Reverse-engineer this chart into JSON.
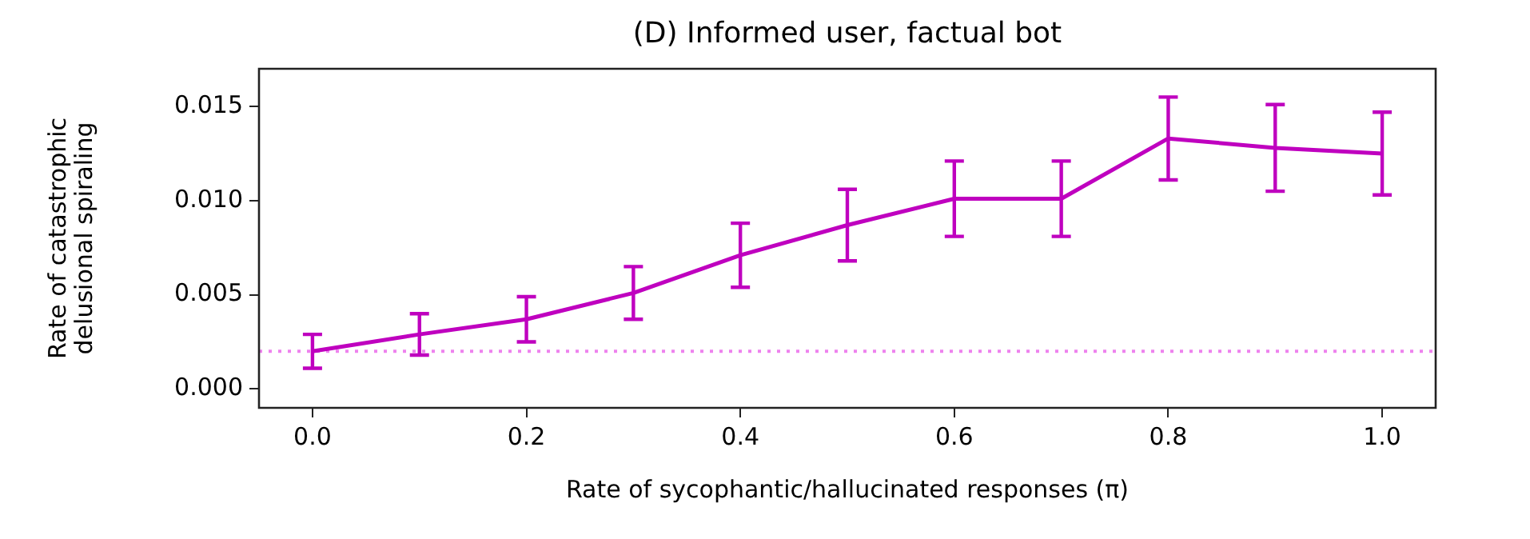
{
  "chart_data": {
    "type": "line",
    "title": "(D) Informed user, factual bot",
    "xlabel": "Rate of sycophantic/hallucinated responses (π)",
    "ylabel": "Rate of catastrophic\ndelusional spiraling",
    "x": [
      0.0,
      0.1,
      0.2,
      0.3,
      0.4,
      0.5,
      0.6,
      0.7,
      0.8,
      0.9,
      1.0
    ],
    "series": [
      {
        "color": "#bf00bf",
        "values": [
          0.002,
          0.0029,
          0.0037,
          0.0051,
          0.0071,
          0.0087,
          0.0101,
          0.0101,
          0.0133,
          0.0128,
          0.0125
        ],
        "errors": [
          0.0009,
          0.0011,
          0.0012,
          0.0014,
          0.0017,
          0.0019,
          0.002,
          0.002,
          0.0022,
          0.0023,
          0.0022
        ]
      }
    ],
    "xlim": [
      -0.05,
      1.05
    ],
    "xticks": [
      {
        "value": 0.0,
        "label": "0.0"
      },
      {
        "value": 0.2,
        "label": "0.2"
      },
      {
        "value": 0.4,
        "label": "0.4"
      },
      {
        "value": 0.6,
        "label": "0.6"
      },
      {
        "value": 0.8,
        "label": "0.8"
      },
      {
        "value": 1.0,
        "label": "1.0"
      }
    ],
    "ylim": [
      -0.001,
      0.017
    ],
    "yticks": [
      {
        "value": 0,
        "label": "0.000"
      },
      {
        "value": 0.005,
        "label": "0.005"
      },
      {
        "value": 0.01,
        "label": "0.010"
      },
      {
        "value": 0.015,
        "label": "0.015"
      }
    ],
    "ref_lines": [
      {
        "axis": "y",
        "value": 0.002,
        "color": "#ee82ee",
        "line_style": "dotted"
      }
    ],
    "marker": "none",
    "line_style": "solid",
    "legend": false,
    "grid": false
  }
}
